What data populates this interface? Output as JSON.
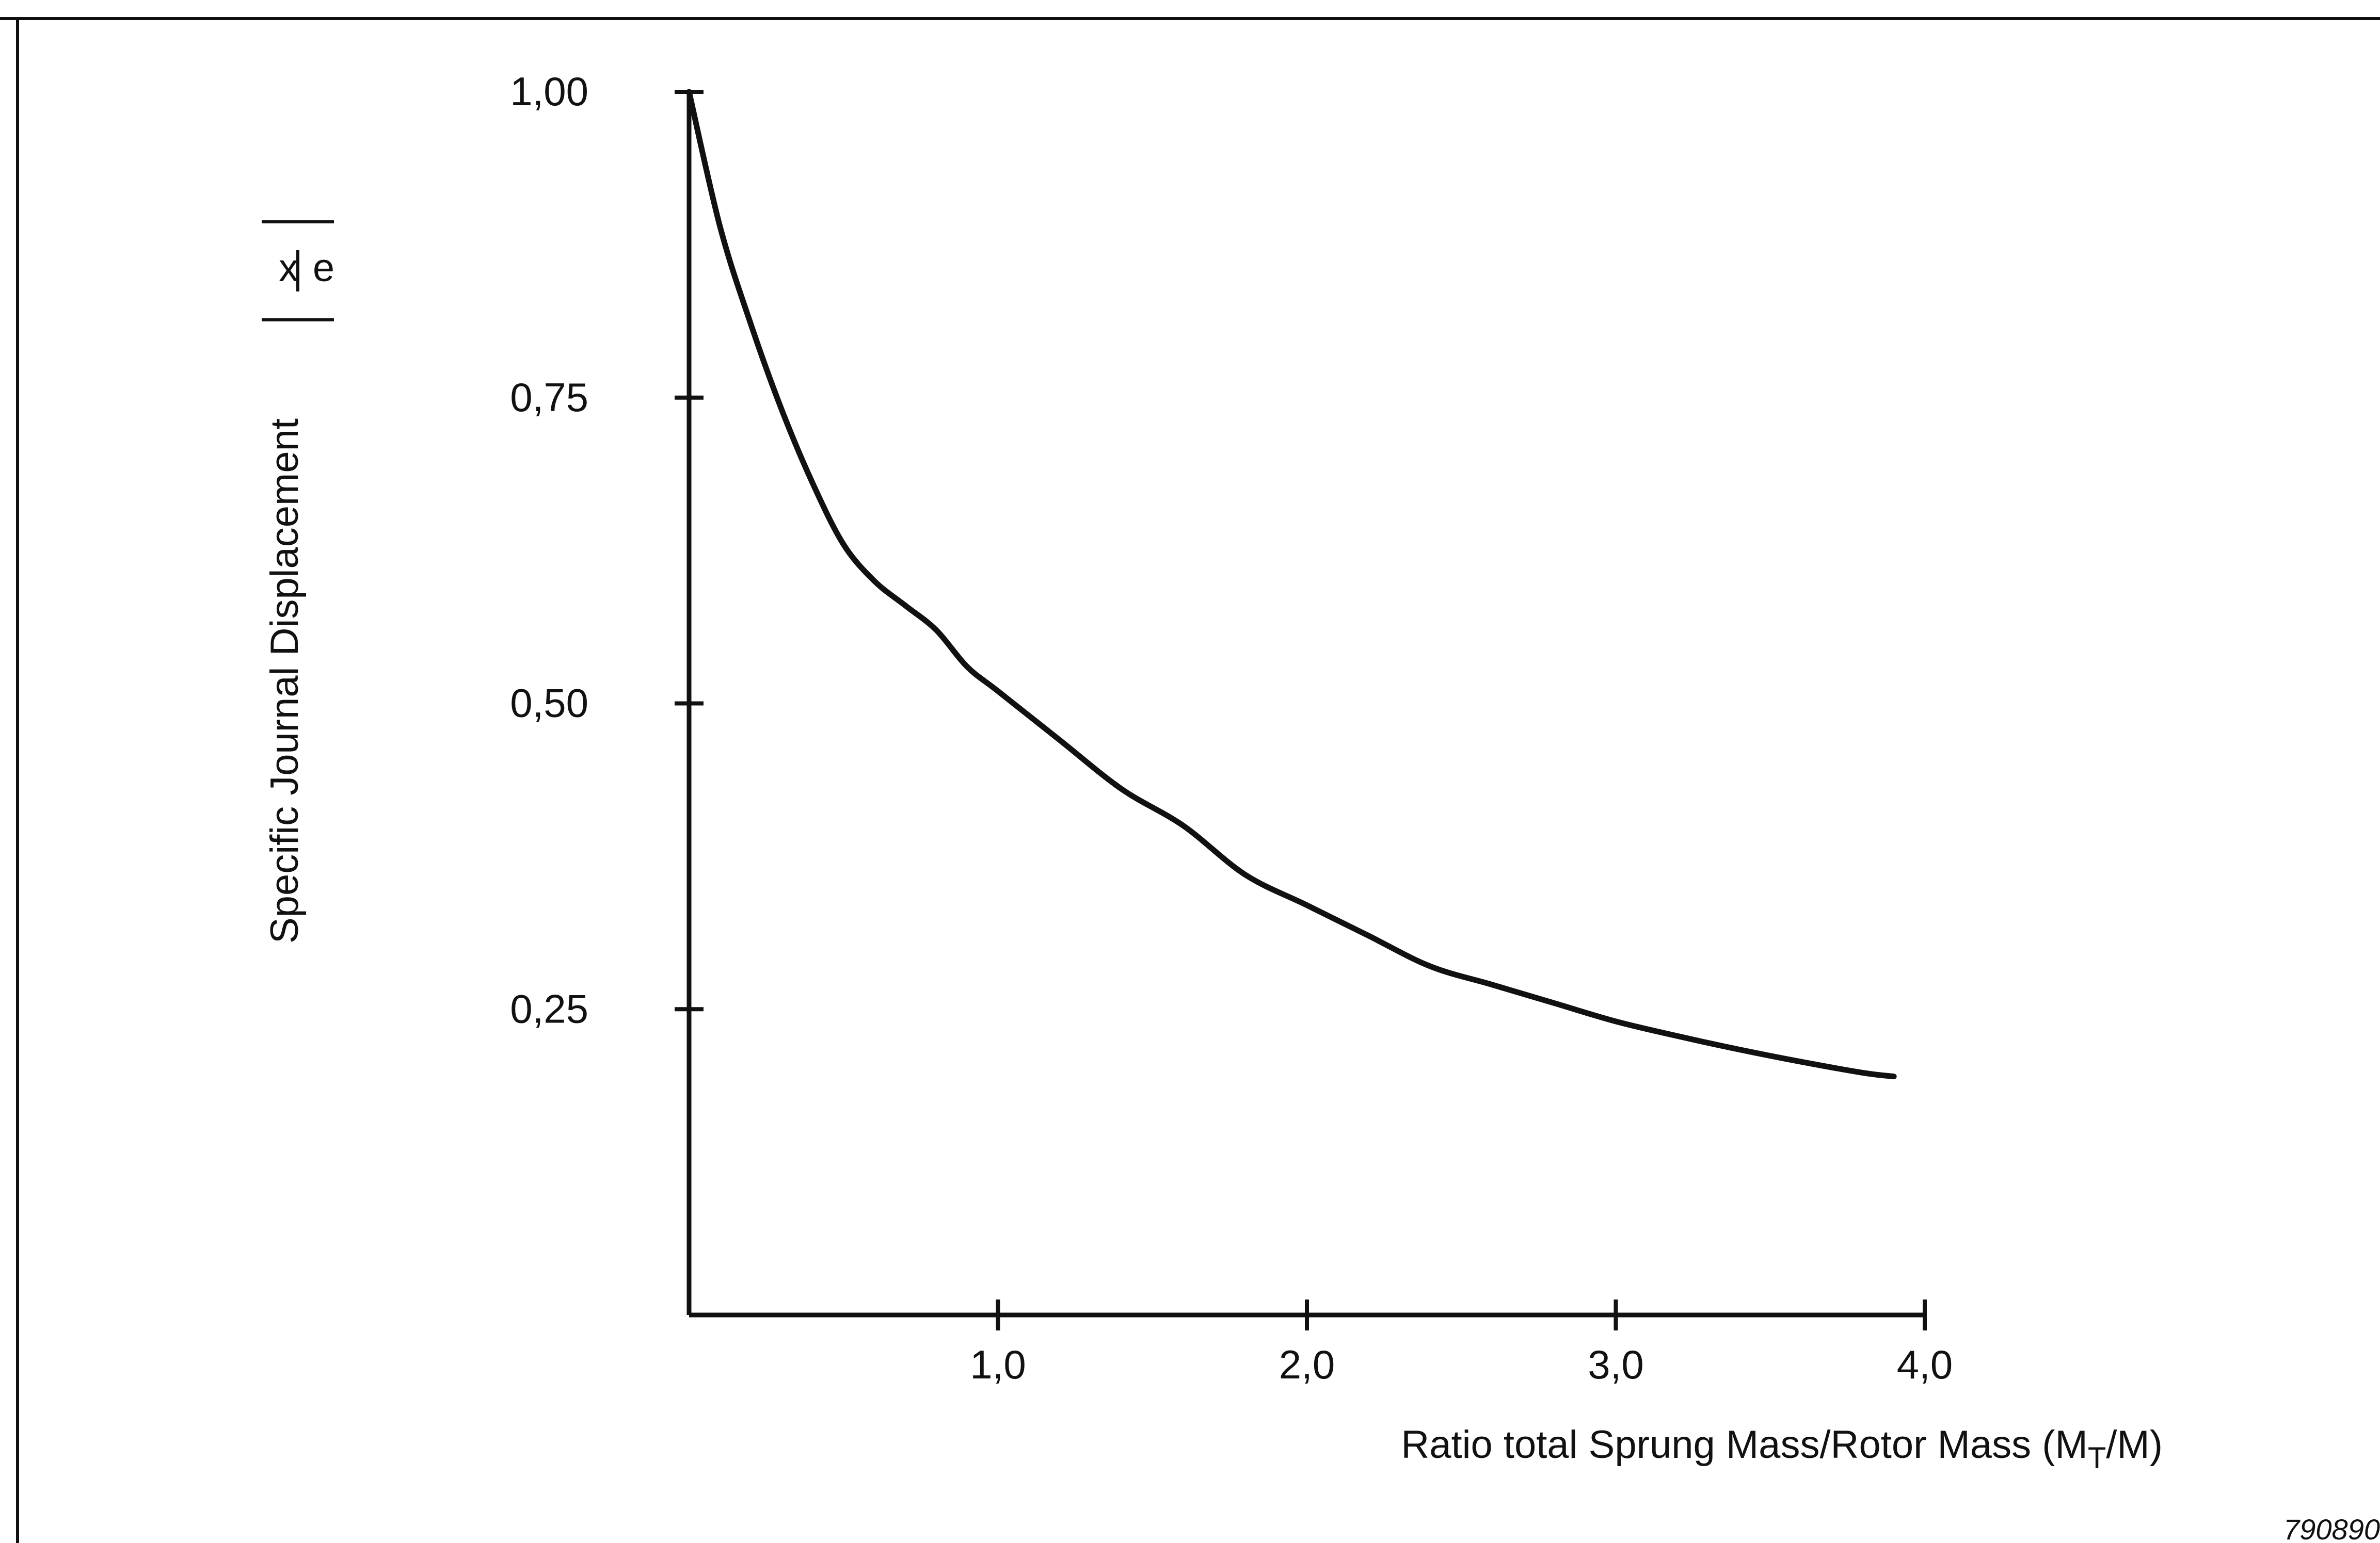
{
  "chart_data": {
    "type": "line",
    "title": "",
    "xlabel": "Ratio total Sprung Mass/Rotor Mass (M",
    "xlabel_subscript": "T",
    "xlabel_suffix": "/M)",
    "ylabel": "Specific Journal Displacement",
    "ylabel_fraction": {
      "numerator": "x",
      "denominator": "e"
    },
    "xlim": [
      0,
      4.0
    ],
    "ylim": [
      0,
      1.0
    ],
    "x_ticks": [
      {
        "value": 1.0,
        "label": "1,0"
      },
      {
        "value": 2.0,
        "label": "2,0"
      },
      {
        "value": 3.0,
        "label": "3,0"
      },
      {
        "value": 4.0,
        "label": "4,0"
      }
    ],
    "y_ticks": [
      {
        "value": 0.25,
        "label": "0,25"
      },
      {
        "value": 0.5,
        "label": "0,50"
      },
      {
        "value": 0.75,
        "label": "0,75"
      },
      {
        "value": 1.0,
        "label": "1,00"
      }
    ],
    "grid": false,
    "series": [
      {
        "color": "#111111",
        "x": [
          0,
          0.1,
          0.2,
          0.3,
          0.4,
          0.5,
          0.6,
          0.7,
          0.8,
          0.9,
          1.0,
          1.2,
          1.4,
          1.6,
          1.8,
          2.0,
          2.2,
          2.4,
          2.6,
          2.8,
          3.0,
          3.2,
          3.4,
          3.6,
          3.8,
          3.9
        ],
        "y": [
          1.0,
          0.89,
          0.81,
          0.74,
          0.68,
          0.63,
          0.6,
          0.58,
          0.56,
          0.53,
          0.51,
          0.47,
          0.43,
          0.4,
          0.36,
          0.335,
          0.31,
          0.285,
          0.27,
          0.255,
          0.24,
          0.228,
          0.217,
          0.207,
          0.198,
          0.195
        ]
      }
    ]
  },
  "figure_number": "790890"
}
